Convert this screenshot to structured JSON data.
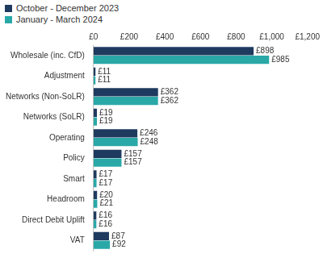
{
  "chart_data": {
    "type": "bar",
    "orientation": "horizontal",
    "categories": [
      "Wholesale (inc. CfD)",
      "Adjustment",
      "Networks (Non-SoLR)",
      "Networks (SoLR)",
      "Operating",
      "Policy",
      "Smart",
      "Headroom",
      "Direct Debit Uplift",
      "VAT"
    ],
    "series": [
      {
        "name": "October - December 2023",
        "color": "#1f3a5f",
        "values": [
          898,
          11,
          362,
          19,
          246,
          157,
          17,
          20,
          16,
          87
        ],
        "value_labels": [
          "£898",
          "£11",
          "£362",
          "£19",
          "£246",
          "£157",
          "£17",
          "£20",
          "£16",
          "£87"
        ]
      },
      {
        "name": "January - March 2024",
        "color": "#2aa8a8",
        "values": [
          985,
          11,
          362,
          19,
          248,
          157,
          17,
          21,
          16,
          92
        ],
        "value_labels": [
          "£985",
          "£11",
          "£362",
          "£19",
          "£248",
          "£157",
          "£17",
          "£21",
          "£16",
          "£92"
        ]
      }
    ],
    "xlim": [
      0,
      1200
    ],
    "xticks": [
      {
        "value": 0,
        "label": "£0"
      },
      {
        "value": 200,
        "label": "£200"
      },
      {
        "value": 400,
        "label": "£400"
      },
      {
        "value": 600,
        "label": "£600"
      },
      {
        "value": 800,
        "label": "£800"
      },
      {
        "value": 1000,
        "label": "£1,000"
      },
      {
        "value": 1200,
        "label": "£1,200"
      }
    ],
    "grid": false,
    "legend": "top-left",
    "data_labels": true
  }
}
